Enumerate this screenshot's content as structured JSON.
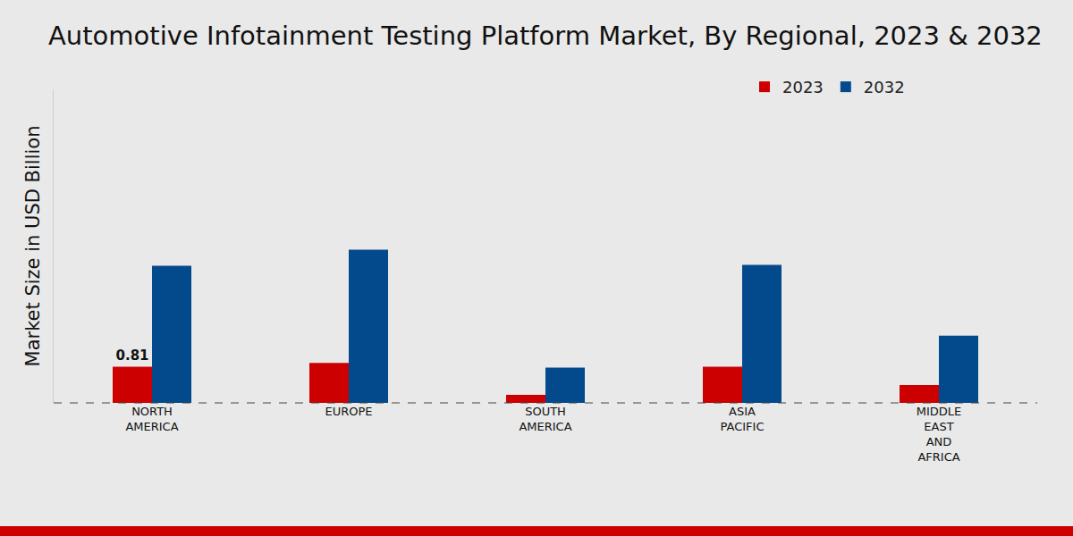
{
  "chart_data": {
    "type": "bar",
    "title": "Automotive Infotainment Testing Platform Market, By Regional, 2023 & 2032",
    "y_label": "Market Size in USD Billion",
    "categories": [
      "NORTH AMERICA",
      "EUROPE",
      "SOUTH AMERICA",
      "ASIA PACIFIC",
      "MIDDLE EAST AND AFRICA"
    ],
    "series": [
      {
        "name": "2023",
        "color": "#cc0000",
        "values": [
          0.81,
          0.89,
          0.18,
          0.81,
          0.4
        ],
        "value_labels": [
          "0.81",
          null,
          null,
          null,
          null
        ]
      },
      {
        "name": "2032",
        "color": "#034a8c",
        "values": [
          3.06,
          3.42,
          0.79,
          3.08,
          1.5
        ]
      }
    ],
    "ylim": [
      0,
      7
    ],
    "yticks": [
      0
    ],
    "tick_labels": "x",
    "data_labels": true,
    "legend": "top right",
    "grid": false
  }
}
